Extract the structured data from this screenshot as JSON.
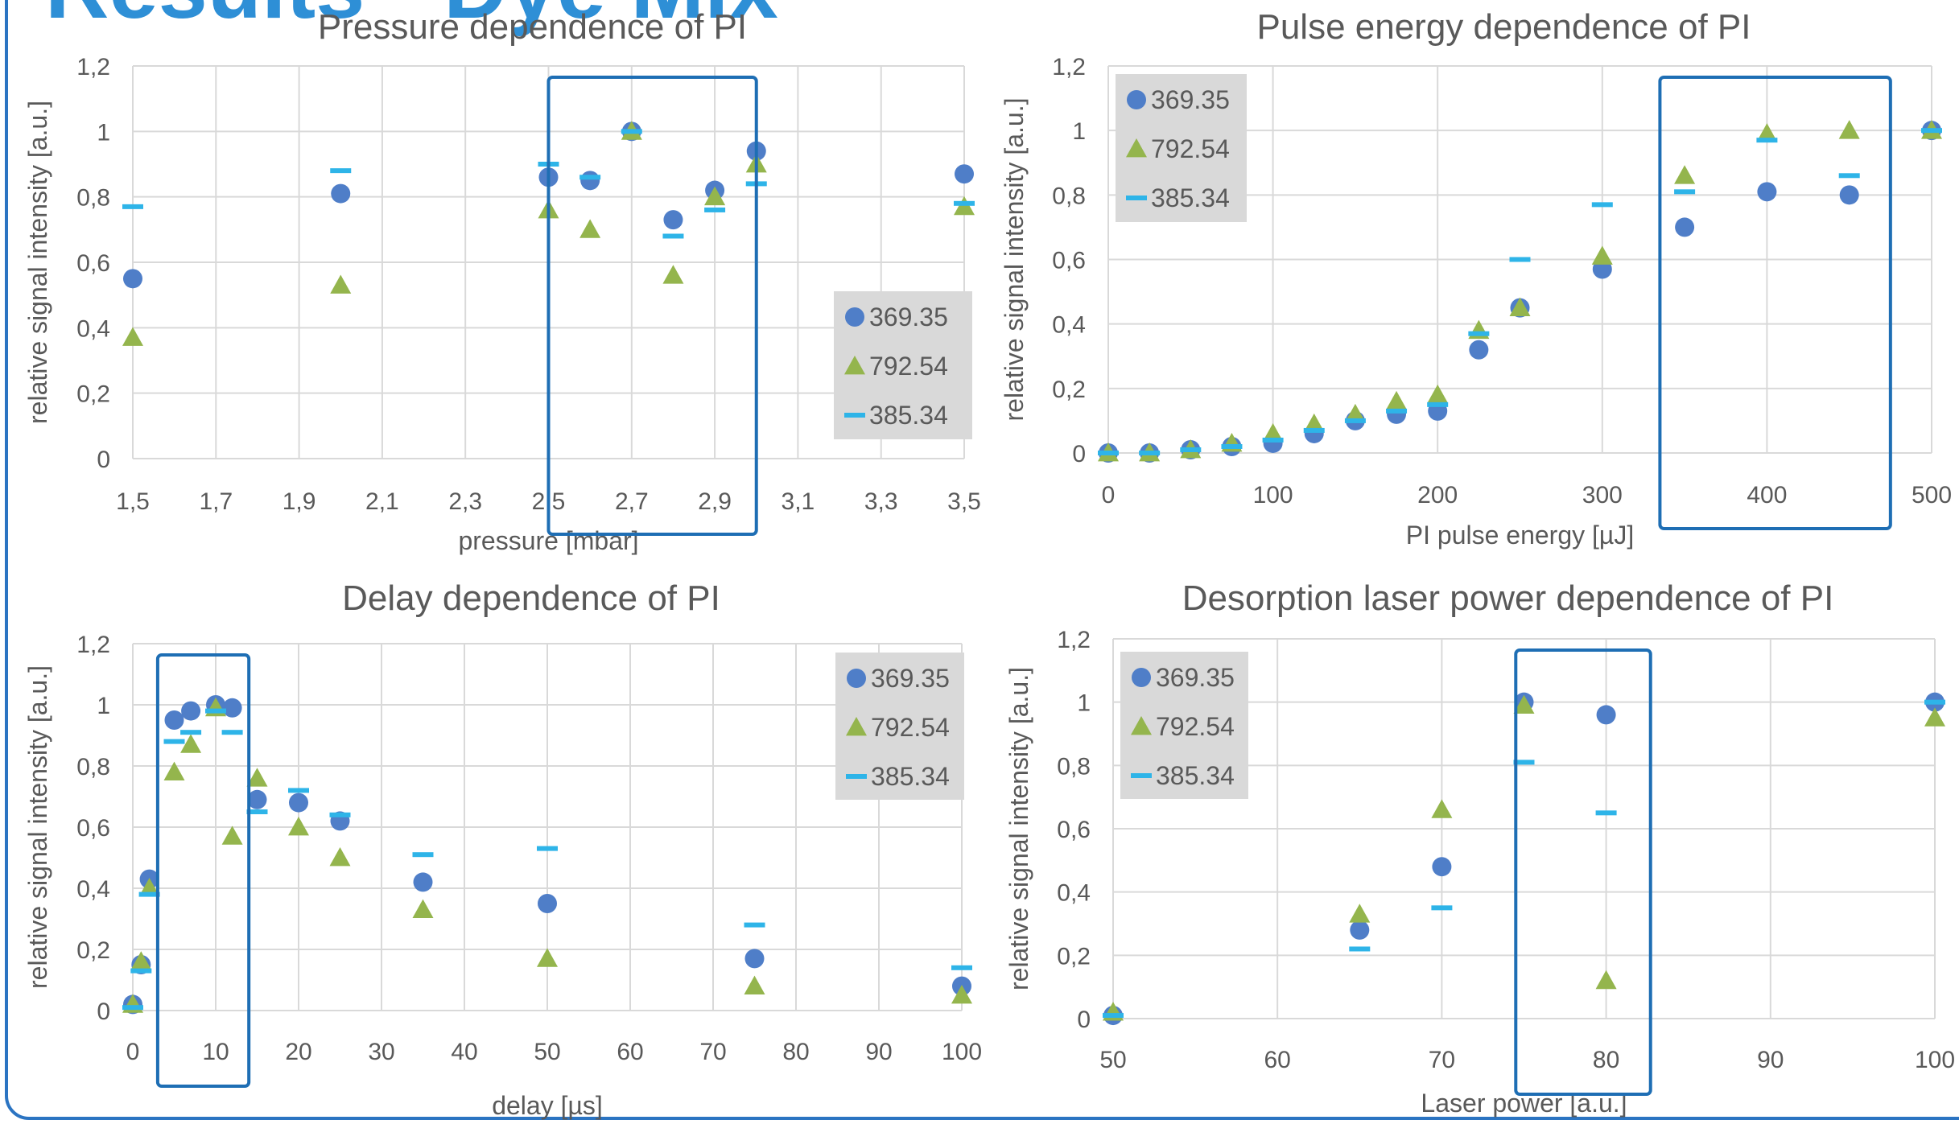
{
  "header_fragment": "Results - Dye Mix",
  "legend_labels": [
    "369.35",
    "792.54",
    "385.34"
  ],
  "colors": {
    "series_369_35": "#4f7ec8",
    "series_792_54": "#94b54d",
    "series_385_34": "#2eb4e8",
    "highlight_box": "#1e6eb4",
    "frame": "#2b74c2",
    "grid": "#d9d9d9",
    "legend_bg": "#d9d9d9",
    "text": "#595959"
  },
  "chart_data": [
    {
      "type": "scatter",
      "title": "Pressure dependence of PI",
      "xlabel": "pressure [mbar]",
      "ylabel": "relative signal intensity [a.u.]",
      "xlim": [
        1.5,
        3.5
      ],
      "ylim": [
        0,
        1.2
      ],
      "x_ticks": [
        "1,5",
        "1,7",
        "1,9",
        "2,1",
        "2,3",
        "2,5",
        "2,7",
        "2,9",
        "3,1",
        "3,3",
        "3,5"
      ],
      "y_ticks": [
        "0",
        "0,2",
        "0,4",
        "0,6",
        "0,8",
        "1",
        "1,2"
      ],
      "grid": true,
      "legend_position": "right",
      "highlight_range": [
        2.5,
        3.0
      ],
      "series": [
        {
          "name": "369.35",
          "marker": "circle",
          "x": [
            1.5,
            2.0,
            2.5,
            2.6,
            2.7,
            2.8,
            2.9,
            3.0,
            3.5
          ],
          "y": [
            0.55,
            0.81,
            0.86,
            0.85,
            1.0,
            0.73,
            0.82,
            0.94,
            0.87
          ]
        },
        {
          "name": "792.54",
          "marker": "triangle",
          "x": [
            1.5,
            2.0,
            2.5,
            2.6,
            2.7,
            2.8,
            2.9,
            3.0,
            3.5
          ],
          "y": [
            0.37,
            0.53,
            0.76,
            0.7,
            1.0,
            0.56,
            0.8,
            0.9,
            0.77
          ]
        },
        {
          "name": "385.34",
          "marker": "dash",
          "x": [
            1.5,
            2.0,
            2.5,
            2.6,
            2.7,
            2.8,
            2.9,
            3.0,
            3.5
          ],
          "y": [
            0.77,
            0.88,
            0.9,
            0.86,
            1.0,
            0.68,
            0.76,
            0.84,
            0.78
          ]
        }
      ]
    },
    {
      "type": "scatter",
      "title": "Pulse energy dependence of PI",
      "xlabel": "PI pulse energy [µJ]",
      "ylabel": "relative signal intensity [a.u.]",
      "xlim": [
        0,
        500
      ],
      "ylim": [
        0,
        1.2
      ],
      "x_ticks": [
        "0",
        "100",
        "200",
        "300",
        "400",
        "500"
      ],
      "y_ticks": [
        "0",
        "0,2",
        "0,4",
        "0,6",
        "0,8",
        "1",
        "1,2"
      ],
      "grid": true,
      "legend_position": "top-left",
      "highlight_range": [
        335,
        475
      ],
      "series": [
        {
          "name": "369.35",
          "marker": "circle",
          "x": [
            0,
            25,
            50,
            75,
            100,
            125,
            150,
            175,
            200,
            225,
            250,
            300,
            350,
            400,
            450,
            500
          ],
          "y": [
            0.0,
            0.0,
            0.01,
            0.02,
            0.03,
            0.06,
            0.1,
            0.12,
            0.13,
            0.32,
            0.45,
            0.57,
            0.7,
            0.81,
            0.8,
            1.0
          ]
        },
        {
          "name": "792.54",
          "marker": "triangle",
          "x": [
            0,
            25,
            50,
            75,
            100,
            125,
            150,
            175,
            200,
            225,
            250,
            300,
            350,
            400,
            450,
            500
          ],
          "y": [
            0.0,
            0.0,
            0.01,
            0.03,
            0.06,
            0.09,
            0.12,
            0.16,
            0.18,
            0.38,
            0.45,
            0.61,
            0.86,
            0.99,
            1.0,
            1.0
          ]
        },
        {
          "name": "385.34",
          "marker": "dash",
          "x": [
            0,
            25,
            50,
            75,
            100,
            125,
            150,
            175,
            200,
            225,
            250,
            300,
            350,
            400,
            450,
            500
          ],
          "y": [
            0.0,
            0.0,
            0.01,
            0.02,
            0.04,
            0.07,
            0.1,
            0.13,
            0.15,
            0.37,
            0.6,
            0.77,
            0.81,
            0.97,
            0.86,
            1.0
          ]
        }
      ]
    },
    {
      "type": "scatter",
      "title": "Delay dependence of PI",
      "xlabel": "delay [µs]",
      "ylabel": "relative signal intensity [a.u.]",
      "xlim": [
        0,
        100
      ],
      "ylim": [
        0,
        1.2
      ],
      "x_ticks": [
        "0",
        "10",
        "20",
        "30",
        "40",
        "50",
        "60",
        "70",
        "80",
        "90",
        "100"
      ],
      "y_ticks": [
        "0",
        "0,2",
        "0,4",
        "0,6",
        "0,8",
        "1",
        "1,2"
      ],
      "grid": true,
      "legend_position": "top-right",
      "highlight_range": [
        3,
        14
      ],
      "series": [
        {
          "name": "369.35",
          "marker": "circle",
          "x": [
            0,
            1,
            2,
            5,
            7,
            10,
            12,
            15,
            20,
            25,
            35,
            50,
            75,
            100
          ],
          "y": [
            0.02,
            0.15,
            0.43,
            0.95,
            0.98,
            1.0,
            0.99,
            0.69,
            0.68,
            0.62,
            0.42,
            0.35,
            0.17,
            0.08
          ]
        },
        {
          "name": "792.54",
          "marker": "triangle",
          "x": [
            0,
            1,
            2,
            5,
            7,
            10,
            12,
            15,
            20,
            25,
            35,
            50,
            75,
            100
          ],
          "y": [
            0.02,
            0.16,
            0.4,
            0.78,
            0.87,
            0.99,
            0.57,
            0.76,
            0.6,
            0.5,
            0.33,
            0.17,
            0.08,
            0.05
          ]
        },
        {
          "name": "385.34",
          "marker": "dash",
          "x": [
            0,
            1,
            2,
            5,
            7,
            10,
            12,
            15,
            20,
            25,
            35,
            50,
            75,
            100
          ],
          "y": [
            0.01,
            0.13,
            0.38,
            0.88,
            0.91,
            0.98,
            0.91,
            0.65,
            0.72,
            0.64,
            0.51,
            0.53,
            0.28,
            0.14
          ]
        }
      ]
    },
    {
      "type": "scatter",
      "title": "Desorption laser power dependence of PI",
      "xlabel": "Laser power [a.u.]",
      "ylabel": "relative signal intensity [a.u.]",
      "xlim": [
        50,
        100
      ],
      "ylim": [
        0,
        1.2
      ],
      "x_ticks": [
        "50",
        "60",
        "70",
        "80",
        "90",
        "100"
      ],
      "y_ticks": [
        "0",
        "0,2",
        "0,4",
        "0,6",
        "0,8",
        "1",
        "1,2"
      ],
      "grid": true,
      "legend_position": "top-left",
      "highlight_range": [
        74.5,
        82.7
      ],
      "series": [
        {
          "name": "369.35",
          "marker": "circle",
          "x": [
            50,
            65,
            70,
            75,
            80,
            100
          ],
          "y": [
            0.01,
            0.28,
            0.48,
            1.0,
            0.96,
            1.0
          ]
        },
        {
          "name": "792.54",
          "marker": "triangle",
          "x": [
            50,
            65,
            70,
            75,
            80,
            100
          ],
          "y": [
            0.02,
            0.33,
            0.66,
            0.99,
            0.12,
            0.95
          ]
        },
        {
          "name": "385.34",
          "marker": "dash",
          "x": [
            50,
            65,
            70,
            75,
            80,
            100
          ],
          "y": [
            0.01,
            0.22,
            0.35,
            0.81,
            0.65,
            1.0
          ]
        }
      ]
    }
  ]
}
